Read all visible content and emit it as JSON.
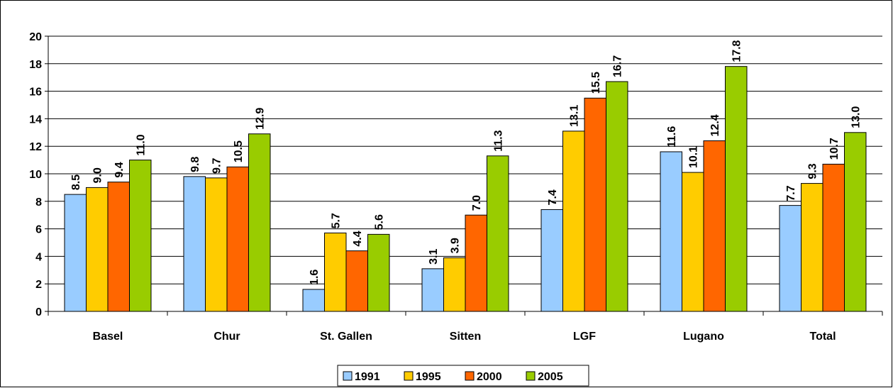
{
  "chart_data": {
    "type": "bar",
    "title": "",
    "xlabel": "",
    "ylabel": "",
    "ylim": [
      0,
      20
    ],
    "yticks": [
      0,
      2,
      4,
      6,
      8,
      10,
      12,
      14,
      16,
      18,
      20
    ],
    "grid": true,
    "legend_position": "bottom",
    "categories": [
      "Basel",
      "Chur",
      "St. Gallen",
      "Sitten",
      "LGF",
      "Lugano",
      "Total"
    ],
    "series": [
      {
        "name": "1991",
        "color": "#99CCFF",
        "values": [
          8.5,
          9.8,
          1.6,
          3.1,
          7.4,
          11.6,
          7.7
        ]
      },
      {
        "name": "1995",
        "color": "#FFCC00",
        "values": [
          9.0,
          9.7,
          5.7,
          3.9,
          13.1,
          10.1,
          9.3
        ]
      },
      {
        "name": "2000",
        "color": "#FF6600",
        "values": [
          9.4,
          10.5,
          4.4,
          7.0,
          15.5,
          12.4,
          10.7
        ]
      },
      {
        "name": "2005",
        "color": "#99CC00",
        "values": [
          11.0,
          12.9,
          5.6,
          11.3,
          16.7,
          17.8,
          13.0
        ]
      }
    ]
  }
}
